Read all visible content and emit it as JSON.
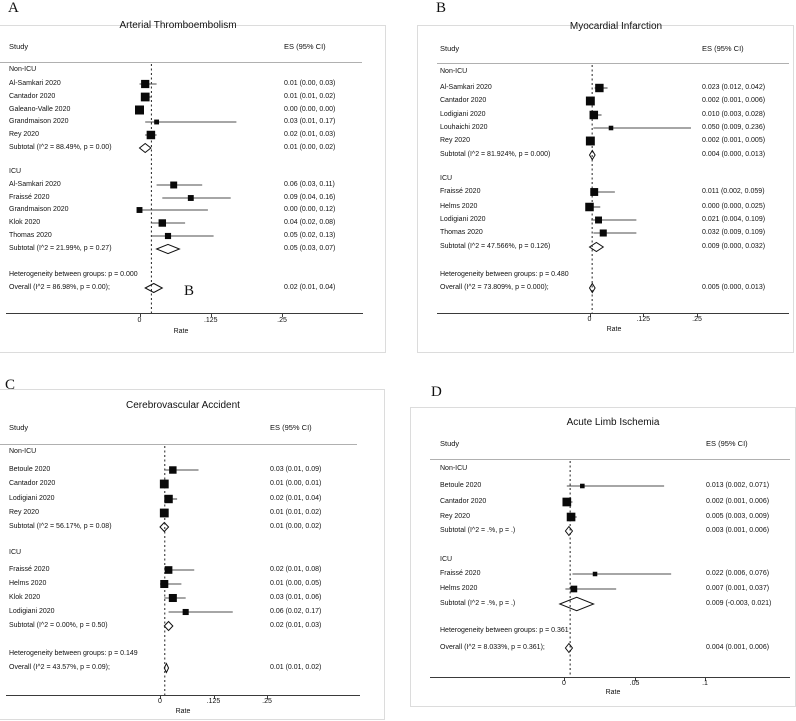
{
  "chart_data": [
    {
      "type": "scatter",
      "subtype": "forest-plot",
      "panel_letter": "A",
      "title": "Arterial Thromboembolism",
      "col_study": "Study",
      "col_es": "ES (95% CI)",
      "xlabel": "Rate",
      "xtick_labels": [
        "0",
        ".125",
        ".25"
      ],
      "xtick_values": [
        0,
        0.125,
        0.25
      ],
      "null_line_at": 0.02,
      "groups": [
        {
          "name": "Non-ICU",
          "studies": [
            {
              "label": "Al-Samkari 2020",
              "es": 0.01,
              "ci_lo": 0.0,
              "ci_hi": 0.03,
              "es_text": "0.01 (0.00, 0.03)"
            },
            {
              "label": "Cantador 2020",
              "es": 0.01,
              "ci_lo": 0.01,
              "ci_hi": 0.02,
              "es_text": "0.01 (0.01, 0.02)"
            },
            {
              "label": "Galeano-Valle 2020",
              "es": 0.0,
              "ci_lo": 0.0,
              "ci_hi": 0.0,
              "es_text": "0.00 (0.00, 0.00)"
            },
            {
              "label": "Grandmaison 2020",
              "es": 0.03,
              "ci_lo": 0.01,
              "ci_hi": 0.17,
              "es_text": "0.03 (0.01, 0.17)"
            },
            {
              "label": "Rey 2020",
              "es": 0.02,
              "ci_lo": 0.01,
              "ci_hi": 0.03,
              "es_text": "0.02 (0.01, 0.03)"
            }
          ],
          "subtotal": {
            "label": "Subtotal  (I^2 = 88.49%, p = 0.00)",
            "es": 0.01,
            "ci_lo": 0.0,
            "ci_hi": 0.02,
            "es_text": "0.01 (0.00, 0.02)"
          }
        },
        {
          "name": "ICU",
          "studies": [
            {
              "label": "Al-Samkari 2020",
              "es": 0.06,
              "ci_lo": 0.03,
              "ci_hi": 0.11,
              "es_text": "0.06 (0.03, 0.11)"
            },
            {
              "label": "Fraissé 2020",
              "es": 0.09,
              "ci_lo": 0.04,
              "ci_hi": 0.16,
              "es_text": "0.09 (0.04, 0.16)"
            },
            {
              "label": "Grandmaison 2020",
              "es": 0.0,
              "ci_lo": 0.0,
              "ci_hi": 0.12,
              "es_text": "0.00 (0.00, 0.12)"
            },
            {
              "label": "Klok 2020",
              "es": 0.04,
              "ci_lo": 0.02,
              "ci_hi": 0.08,
              "es_text": "0.04 (0.02, 0.08)"
            },
            {
              "label": "Thomas 2020",
              "es": 0.05,
              "ci_lo": 0.02,
              "ci_hi": 0.13,
              "es_text": "0.05 (0.02, 0.13)"
            }
          ],
          "subtotal": {
            "label": "Subtotal  (I^2 = 21.99%, p = 0.27)",
            "es": 0.05,
            "ci_lo": 0.03,
            "ci_hi": 0.07,
            "es_text": "0.05 (0.03, 0.07)"
          }
        }
      ],
      "heterogeneity_text": "Heterogeneity between groups: p = 0.000",
      "overall": {
        "label": "Overall  (I^2 = 86.98%, p = 0.00);",
        "es": 0.02,
        "ci_lo": 0.01,
        "ci_hi": 0.04,
        "es_text": "0.02 (0.01, 0.04)"
      },
      "stray_label": "B"
    },
    {
      "type": "scatter",
      "subtype": "forest-plot",
      "panel_letter": "B",
      "title": "Myocardial Infarction",
      "col_study": "Study",
      "col_es": "ES (95% CI)",
      "xlabel": "Rate",
      "xtick_labels": [
        "0",
        ".125",
        ".25"
      ],
      "xtick_values": [
        0,
        0.125,
        0.25
      ],
      "null_line_at": 0.005,
      "groups": [
        {
          "name": "Non-ICU",
          "studies": [
            {
              "label": "Al-Samkari 2020",
              "es": 0.023,
              "ci_lo": 0.012,
              "ci_hi": 0.042,
              "es_text": "0.023 (0.012, 0.042)"
            },
            {
              "label": "Cantador 2020",
              "es": 0.002,
              "ci_lo": 0.001,
              "ci_hi": 0.006,
              "es_text": "0.002 (0.001, 0.006)"
            },
            {
              "label": "Lodigiani 2020",
              "es": 0.01,
              "ci_lo": 0.003,
              "ci_hi": 0.028,
              "es_text": "0.010 (0.003, 0.028)"
            },
            {
              "label": "Louhaichi 2020",
              "es": 0.05,
              "ci_lo": 0.009,
              "ci_hi": 0.236,
              "es_text": "0.050 (0.009, 0.236)"
            },
            {
              "label": "Rey 2020",
              "es": 0.002,
              "ci_lo": 0.001,
              "ci_hi": 0.005,
              "es_text": "0.002 (0.001, 0.005)"
            }
          ],
          "subtotal": {
            "label": "Subtotal  (I^2 = 81.924%, p = 0.000)",
            "es": 0.004,
            "ci_lo": 0.0,
            "ci_hi": 0.013,
            "es_text": "0.004 (0.000, 0.013)"
          }
        },
        {
          "name": "ICU",
          "studies": [
            {
              "label": "Fraissé 2020",
              "es": 0.011,
              "ci_lo": 0.002,
              "ci_hi": 0.059,
              "es_text": "0.011 (0.002, 0.059)"
            },
            {
              "label": "Helms 2020",
              "es": 0.0,
              "ci_lo": 0.0,
              "ci_hi": 0.025,
              "es_text": "0.000 (0.000, 0.025)"
            },
            {
              "label": "Lodigiani 2020",
              "es": 0.021,
              "ci_lo": 0.004,
              "ci_hi": 0.109,
              "es_text": "0.021 (0.004, 0.109)"
            },
            {
              "label": "Thomas 2020",
              "es": 0.032,
              "ci_lo": 0.009,
              "ci_hi": 0.109,
              "es_text": "0.032 (0.009, 0.109)"
            }
          ],
          "subtotal": {
            "label": "Subtotal  (I^2 = 47.566%, p = 0.126)",
            "es": 0.009,
            "ci_lo": 0.0,
            "ci_hi": 0.032,
            "es_text": "0.009 (0.000, 0.032)"
          }
        }
      ],
      "heterogeneity_text": "Heterogeneity between groups: p = 0.480",
      "overall": {
        "label": "Overall  (I^2 = 73.809%, p = 0.000);",
        "es": 0.005,
        "ci_lo": 0.0,
        "ci_hi": 0.013,
        "es_text": "0.005 (0.000, 0.013)"
      }
    },
    {
      "type": "scatter",
      "subtype": "forest-plot",
      "panel_letter": "C",
      "title": "Cerebrovascular Accident",
      "col_study": "Study",
      "col_es": "ES (95% CI)",
      "xlabel": "Rate",
      "xtick_labels": [
        "0",
        ".125",
        ".25"
      ],
      "xtick_values": [
        0,
        0.125,
        0.25
      ],
      "null_line_at": 0.01,
      "groups": [
        {
          "name": "Non-ICU",
          "studies": [
            {
              "label": "Betoule 2020",
              "es": 0.03,
              "ci_lo": 0.01,
              "ci_hi": 0.09,
              "es_text": "0.03 (0.01, 0.09)"
            },
            {
              "label": "Cantador 2020",
              "es": 0.01,
              "ci_lo": 0.0,
              "ci_hi": 0.01,
              "es_text": "0.01 (0.00, 0.01)"
            },
            {
              "label": "Lodigiani 2020",
              "es": 0.02,
              "ci_lo": 0.01,
              "ci_hi": 0.04,
              "es_text": "0.02 (0.01, 0.04)"
            },
            {
              "label": "Rey 2020",
              "es": 0.01,
              "ci_lo": 0.01,
              "ci_hi": 0.02,
              "es_text": "0.01 (0.01, 0.02)"
            }
          ],
          "subtotal": {
            "label": "Subtotal  (I^2 = 56.17%, p = 0.08)",
            "es": 0.01,
            "ci_lo": 0.0,
            "ci_hi": 0.02,
            "es_text": "0.01 (0.00, 0.02)"
          }
        },
        {
          "name": "ICU",
          "studies": [
            {
              "label": "Fraissé 2020",
              "es": 0.02,
              "ci_lo": 0.01,
              "ci_hi": 0.08,
              "es_text": "0.02 (0.01, 0.08)"
            },
            {
              "label": "Helms 2020",
              "es": 0.01,
              "ci_lo": 0.0,
              "ci_hi": 0.05,
              "es_text": "0.01 (0.00, 0.05)"
            },
            {
              "label": "Klok 2020",
              "es": 0.03,
              "ci_lo": 0.01,
              "ci_hi": 0.06,
              "es_text": "0.03 (0.01, 0.06)"
            },
            {
              "label": "Lodigiani 2020",
              "es": 0.06,
              "ci_lo": 0.02,
              "ci_hi": 0.17,
              "es_text": "0.06 (0.02, 0.17)"
            }
          ],
          "subtotal": {
            "label": "Subtotal  (I^2 = 0.00%, p = 0.50)",
            "es": 0.02,
            "ci_lo": 0.01,
            "ci_hi": 0.03,
            "es_text": "0.02 (0.01, 0.03)"
          }
        }
      ],
      "heterogeneity_text": "Heterogeneity between groups: p = 0.149",
      "overall": {
        "label": "Overall  (I^2 = 43.57%, p = 0.09);",
        "es": 0.01,
        "ci_lo": 0.01,
        "ci_hi": 0.02,
        "es_text": "0.01 (0.01, 0.02)"
      }
    },
    {
      "type": "scatter",
      "subtype": "forest-plot",
      "panel_letter": "D",
      "title": "Acute Limb Ischemia",
      "col_study": "Study",
      "col_es": "ES (95% CI)",
      "xlabel": "Rate",
      "xtick_labels": [
        "0",
        ".05",
        ".1"
      ],
      "xtick_values": [
        0,
        0.05,
        0.1
      ],
      "null_line_at": 0.004,
      "groups": [
        {
          "name": "Non-ICU",
          "studies": [
            {
              "label": "Betoule 2020",
              "es": 0.013,
              "ci_lo": 0.002,
              "ci_hi": 0.071,
              "es_text": "0.013 (0.002, 0.071)"
            },
            {
              "label": "Cantador 2020",
              "es": 0.002,
              "ci_lo": 0.001,
              "ci_hi": 0.006,
              "es_text": "0.002 (0.001, 0.006)"
            },
            {
              "label": "Rey 2020",
              "es": 0.005,
              "ci_lo": 0.003,
              "ci_hi": 0.009,
              "es_text": "0.005 (0.003, 0.009)"
            }
          ],
          "subtotal": {
            "label": "Subtotal  (I^2 = .%, p = .)",
            "es": 0.003,
            "ci_lo": 0.001,
            "ci_hi": 0.006,
            "es_text": "0.003 (0.001, 0.006)"
          }
        },
        {
          "name": "ICU",
          "studies": [
            {
              "label": "Fraissé 2020",
              "es": 0.022,
              "ci_lo": 0.006,
              "ci_hi": 0.076,
              "es_text": "0.022 (0.006, 0.076)"
            },
            {
              "label": "Helms 2020",
              "es": 0.007,
              "ci_lo": 0.001,
              "ci_hi": 0.037,
              "es_text": "0.007 (0.001, 0.037)"
            }
          ],
          "subtotal": {
            "label": "Subtotal  (I^2 = .%, p = .)",
            "es": 0.009,
            "ci_lo": -0.003,
            "ci_hi": 0.021,
            "es_text": "0.009 (-0.003, 0.021)"
          }
        }
      ],
      "heterogeneity_text": "Heterogeneity between groups: p = 0.361",
      "overall": {
        "label": "Overall  (I^2 = 8.033%, p = 0.361);",
        "es": 0.004,
        "ci_lo": 0.001,
        "ci_hi": 0.006,
        "es_text": "0.004 (0.001, 0.006)"
      }
    }
  ]
}
